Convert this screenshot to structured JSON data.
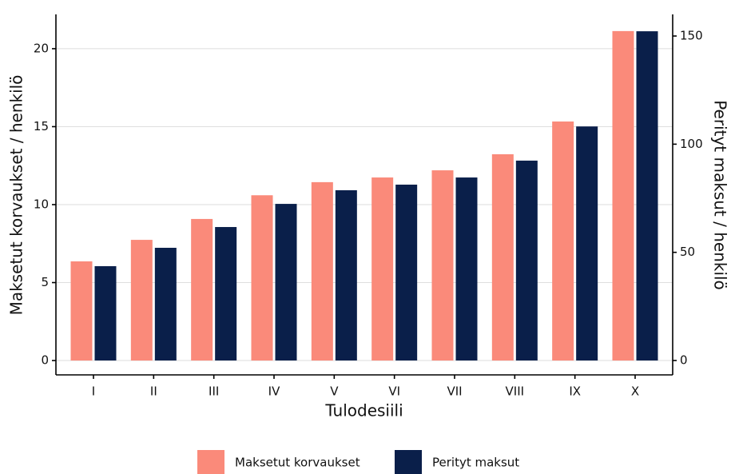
{
  "chart_data": {
    "type": "bar",
    "x_label": "Tulodesiili",
    "y_label": "Maksetut korvaukset / henkilö",
    "y2_label": "Perityt maksut / henkilö",
    "categories": [
      "I",
      "II",
      "III",
      "IV",
      "V",
      "VI",
      "VII",
      "VIII",
      "IX",
      "X"
    ],
    "series": [
      {
        "name": "Maksetut korvaukset",
        "color": "#fa8a7a",
        "values": [
          6.36,
          7.74,
          9.08,
          10.6,
          11.44,
          11.74,
          12.2,
          13.23,
          15.33,
          21.13
        ]
      },
      {
        "name": "Perityt maksut",
        "color": "#0a1f4a",
        "axis": "y2",
        "values": [
          43.6,
          52.1,
          61.7,
          72.4,
          78.7,
          81.3,
          84.6,
          92.4,
          108.2,
          152.2
        ]
      }
    ],
    "ylim": [
      -0.92,
      22.2
    ],
    "yticks": [
      0,
      5,
      10,
      15,
      20
    ],
    "y2lim": [
      -6.65,
      160
    ],
    "y2ticks": [
      0,
      50,
      100,
      150
    ],
    "grid": true,
    "legend": "bottom"
  }
}
